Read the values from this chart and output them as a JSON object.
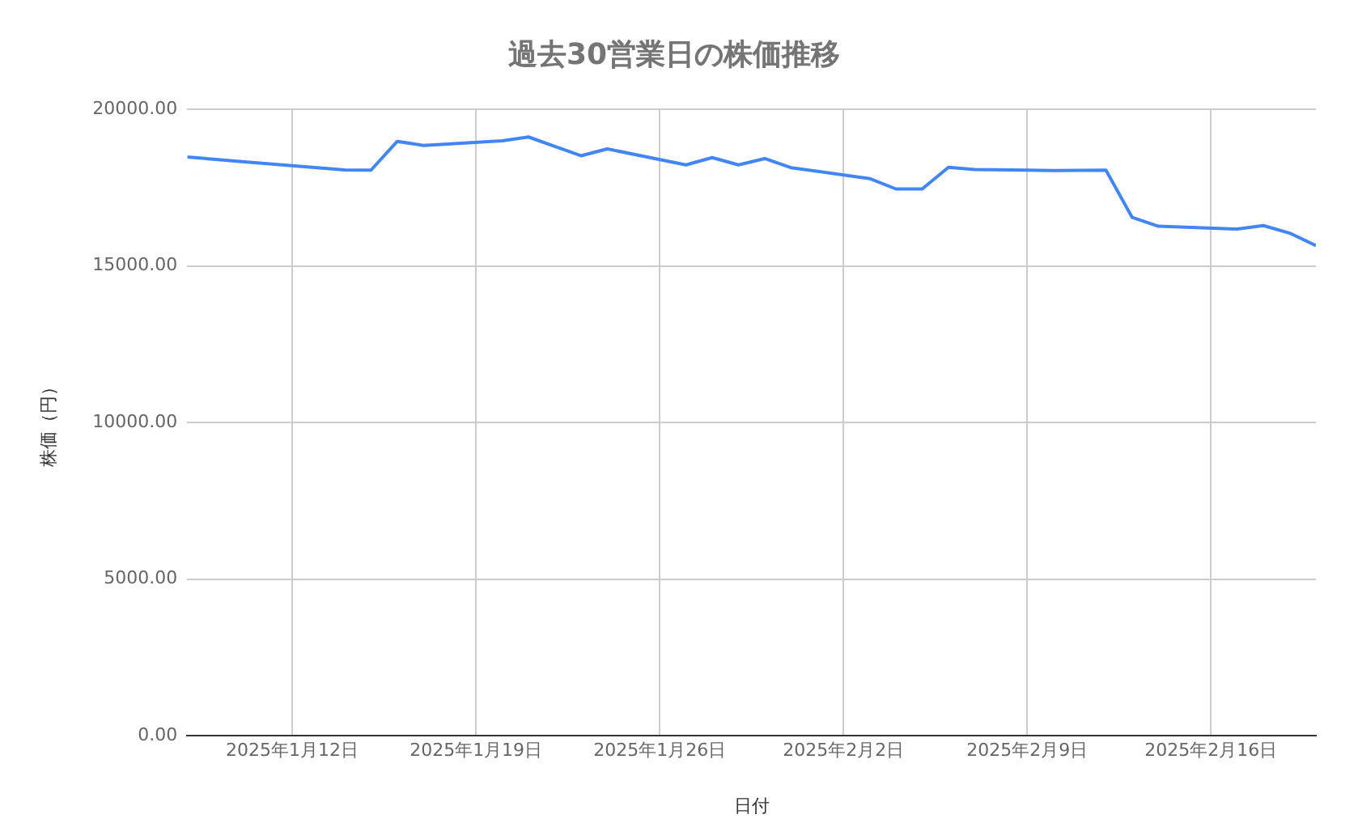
{
  "chart_data": {
    "type": "line",
    "title": "過去30営業日の株価推移",
    "xlabel": "日付",
    "ylabel": "株価（円）",
    "x": [
      "2025-01-08",
      "2025-01-09",
      "2025-01-10",
      "2025-01-14",
      "2025-01-15",
      "2025-01-16",
      "2025-01-17",
      "2025-01-20",
      "2025-01-21",
      "2025-01-22",
      "2025-01-23",
      "2025-01-24",
      "2025-01-27",
      "2025-01-28",
      "2025-01-29",
      "2025-01-30",
      "2025-01-31",
      "2025-02-03",
      "2025-02-04",
      "2025-02-05",
      "2025-02-06",
      "2025-02-07",
      "2025-02-10",
      "2025-02-12",
      "2025-02-13",
      "2025-02-14",
      "2025-02-17",
      "2025-02-18",
      "2025-02-19",
      "2025-02-20"
    ],
    "series": [
      {
        "color": "#4285f4",
        "values": [
          18480,
          18410,
          18340,
          18070,
          18060,
          18980,
          18850,
          19000,
          19120,
          18820,
          18520,
          18740,
          18230,
          18460,
          18230,
          18430,
          18140,
          17790,
          17460,
          17460,
          18150,
          18080,
          18050,
          18060,
          16550,
          16270,
          16180,
          16290,
          16050,
          15650
        ]
      }
    ],
    "xlim": [
      "2025-01-08",
      "2025-02-20"
    ],
    "xticks": [
      {
        "value": "2025-01-12",
        "label": "2025年1月12日"
      },
      {
        "value": "2025-01-19",
        "label": "2025年1月19日"
      },
      {
        "value": "2025-01-26",
        "label": "2025年1月26日"
      },
      {
        "value": "2025-02-02",
        "label": "2025年2月2日"
      },
      {
        "value": "2025-02-09",
        "label": "2025年2月9日"
      },
      {
        "value": "2025-02-16",
        "label": "2025年2月16日"
      }
    ],
    "ylim": [
      0,
      20000
    ],
    "yticks": [
      {
        "value": 0,
        "label": "0.00"
      },
      {
        "value": 5000,
        "label": "5000.00"
      },
      {
        "value": 10000,
        "label": "10000.00"
      },
      {
        "value": 15000,
        "label": "15000.00"
      },
      {
        "value": 20000,
        "label": "20000.00"
      }
    ],
    "grid": true,
    "legend": false,
    "marker": "none",
    "line_style": "solid"
  }
}
